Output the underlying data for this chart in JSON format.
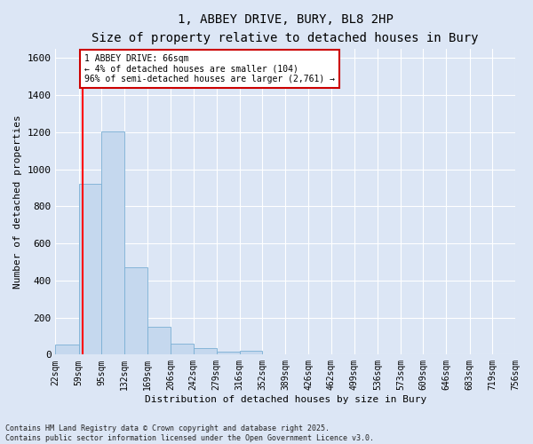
{
  "title": "1, ABBEY DRIVE, BURY, BL8 2HP",
  "subtitle": "Size of property relative to detached houses in Bury",
  "xlabel": "Distribution of detached houses by size in Bury",
  "ylabel": "Number of detached properties",
  "bar_color": "#c5d8ee",
  "bar_edge_color": "#7aafd4",
  "background_color": "#dce6f5",
  "fig_background": "#dce6f5",
  "grid_color": "#ffffff",
  "red_line_x": 66,
  "annotation_text": "1 ABBEY DRIVE: 66sqm\n← 4% of detached houses are smaller (104)\n96% of semi-detached houses are larger (2,761) →",
  "annotation_box_color": "#ffffff",
  "annotation_box_edge": "#cc0000",
  "bins": [
    22,
    59,
    95,
    132,
    169,
    206,
    242,
    279,
    316,
    352,
    389,
    426,
    462,
    499,
    536,
    573,
    609,
    646,
    683,
    719,
    756
  ],
  "bin_labels": [
    "22sqm",
    "59sqm",
    "95sqm",
    "132sqm",
    "169sqm",
    "206sqm",
    "242sqm",
    "279sqm",
    "316sqm",
    "352sqm",
    "389sqm",
    "426sqm",
    "462sqm",
    "499sqm",
    "536sqm",
    "573sqm",
    "609sqm",
    "646sqm",
    "683sqm",
    "719sqm",
    "756sqm"
  ],
  "bar_heights": [
    55,
    920,
    1205,
    470,
    150,
    60,
    35,
    15,
    20,
    0,
    0,
    0,
    0,
    0,
    0,
    0,
    0,
    0,
    0,
    0
  ],
  "ylim": [
    0,
    1650
  ],
  "yticks": [
    0,
    200,
    400,
    600,
    800,
    1000,
    1200,
    1400,
    1600
  ],
  "footer": "Contains HM Land Registry data © Crown copyright and database right 2025.\nContains public sector information licensed under the Open Government Licence v3.0.",
  "font_family": "monospace",
  "title_fontsize": 10,
  "subtitle_fontsize": 9,
  "ylabel_fontsize": 8,
  "xlabel_fontsize": 8,
  "ytick_fontsize": 8,
  "xtick_fontsize": 7
}
